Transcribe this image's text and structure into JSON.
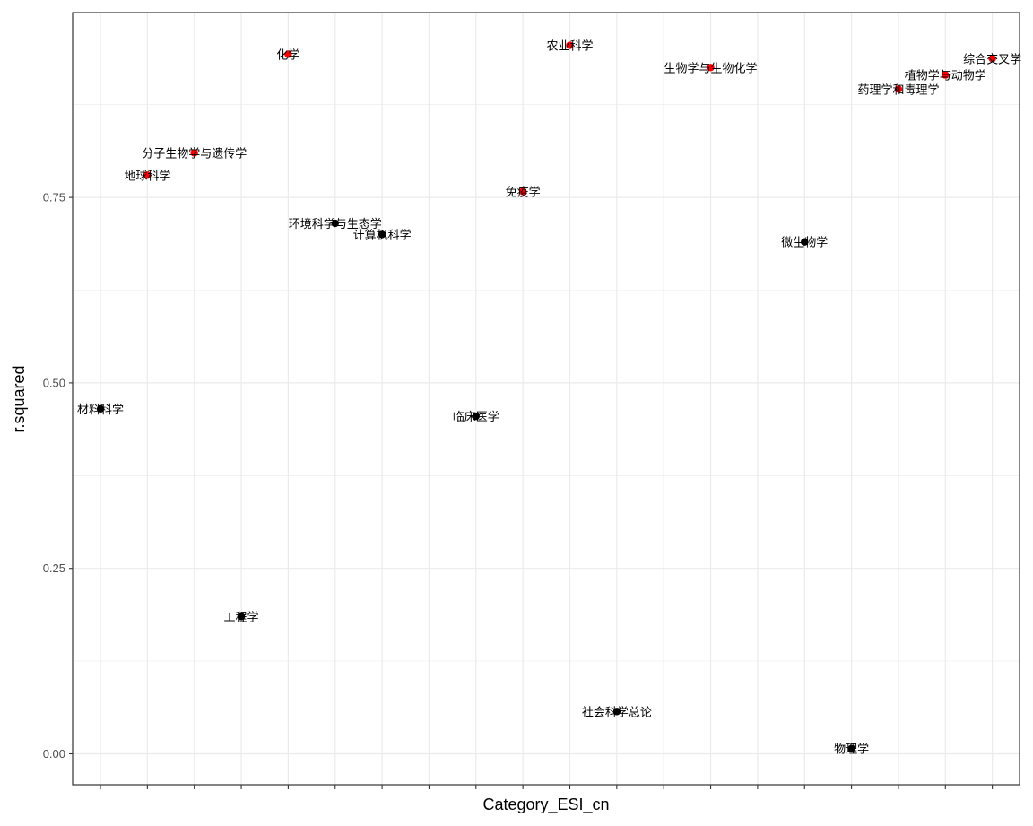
{
  "chart_data": {
    "type": "scatter",
    "xlabel": "Category_ESI_cn",
    "ylabel": "r.squared",
    "ylim": [
      -0.085,
      0.98
    ],
    "y_ticks": [
      0.0,
      0.25,
      0.5,
      0.75
    ],
    "y_tick_labels": [
      "0.00",
      "0.25",
      "0.50",
      "0.75"
    ],
    "x_count": 20,
    "grid": true,
    "colors": {
      "highlight": "#ff0000",
      "normal": "#000000",
      "grid": "#ebebeb",
      "panel_border": "#333333"
    },
    "points": [
      {
        "label": "材料科学",
        "x": 1,
        "y": 0.465,
        "highlight": false
      },
      {
        "label": "地球科学",
        "x": 2,
        "y": 0.78,
        "highlight": true
      },
      {
        "label": "分子生物学与遗传学",
        "x": 3,
        "y": 0.81,
        "highlight": true
      },
      {
        "label": "工程学",
        "x": 4,
        "y": 0.185,
        "highlight": false
      },
      {
        "label": "化学",
        "x": 5,
        "y": 0.943,
        "highlight": true
      },
      {
        "label": "环境科学与生态学",
        "x": 6,
        "y": 0.715,
        "highlight": false
      },
      {
        "label": "计算机科学",
        "x": 7,
        "y": 0.7,
        "highlight": false
      },
      {
        "label": "",
        "x": 8,
        "y": null,
        "highlight": false
      },
      {
        "label": "临床医学",
        "x": 9,
        "y": 0.455,
        "highlight": false
      },
      {
        "label": "免疫学",
        "x": 10,
        "y": 0.758,
        "highlight": true
      },
      {
        "label": "农业科学",
        "x": 11,
        "y": 0.955,
        "highlight": true
      },
      {
        "label": "社会科学总论",
        "x": 12,
        "y": 0.057,
        "highlight": false
      },
      {
        "label": "",
        "x": 13,
        "y": null,
        "highlight": false
      },
      {
        "label": "生物学与生物化学",
        "x": 14,
        "y": 0.925,
        "highlight": true
      },
      {
        "label": "",
        "x": 15,
        "y": null,
        "highlight": false
      },
      {
        "label": "微生物学",
        "x": 16,
        "y": 0.69,
        "highlight": false
      },
      {
        "label": "物理学",
        "x": 17,
        "y": 0.007,
        "highlight": false
      },
      {
        "label": "药理学和毒理学",
        "x": 18,
        "y": 0.896,
        "highlight": true
      },
      {
        "label": "植物学与动物学",
        "x": 19,
        "y": 0.915,
        "highlight": true
      },
      {
        "label": "综合交叉学",
        "x": 20,
        "y": 0.937,
        "highlight": true
      }
    ]
  }
}
